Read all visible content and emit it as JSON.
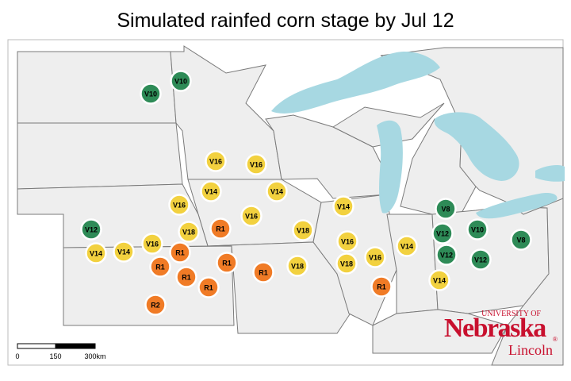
{
  "title": "Simulated rainfed corn stage by Jul 12",
  "colors": {
    "vegetative_early": "#2e8b57",
    "vegetative_late": "#f2d13f",
    "reproductive": "#f07b26",
    "lake": "#a7d8e2",
    "land": "#eeeeee",
    "border": "#7a7a7a",
    "logo_red": "#c8102e"
  },
  "sites": [
    {
      "label": "V10",
      "stage_group": "vegetative_early"
    },
    {
      "label": "V10",
      "stage_group": "vegetative_early"
    },
    {
      "label": "V16",
      "stage_group": "vegetative_late"
    },
    {
      "label": "V16",
      "stage_group": "vegetative_late"
    },
    {
      "label": "V14",
      "stage_group": "vegetative_late"
    },
    {
      "label": "V14",
      "stage_group": "vegetative_late"
    },
    {
      "label": "V16",
      "stage_group": "vegetative_late"
    },
    {
      "label": "V16",
      "stage_group": "vegetative_late"
    },
    {
      "label": "V14",
      "stage_group": "vegetative_late"
    },
    {
      "label": "V12",
      "stage_group": "vegetative_early"
    },
    {
      "label": "V14",
      "stage_group": "vegetative_late"
    },
    {
      "label": "V14",
      "stage_group": "vegetative_late"
    },
    {
      "label": "V16",
      "stage_group": "vegetative_late"
    },
    {
      "label": "V18",
      "stage_group": "vegetative_late"
    },
    {
      "label": "R1",
      "stage_group": "reproductive"
    },
    {
      "label": "V18",
      "stage_group": "vegetative_late"
    },
    {
      "label": "V16",
      "stage_group": "vegetative_late"
    },
    {
      "label": "V18",
      "stage_group": "vegetative_late"
    },
    {
      "label": "V16",
      "stage_group": "vegetative_late"
    },
    {
      "label": "V14",
      "stage_group": "vegetative_late"
    },
    {
      "label": "R1",
      "stage_group": "reproductive"
    },
    {
      "label": "R1",
      "stage_group": "reproductive"
    },
    {
      "label": "R1",
      "stage_group": "reproductive"
    },
    {
      "label": "R1",
      "stage_group": "reproductive"
    },
    {
      "label": "R1",
      "stage_group": "reproductive"
    },
    {
      "label": "R1",
      "stage_group": "reproductive"
    },
    {
      "label": "V18",
      "stage_group": "vegetative_late"
    },
    {
      "label": "R1",
      "stage_group": "reproductive"
    },
    {
      "label": "R2",
      "stage_group": "reproductive"
    },
    {
      "label": "V8",
      "stage_group": "vegetative_early"
    },
    {
      "label": "V12",
      "stage_group": "vegetative_early"
    },
    {
      "label": "V10",
      "stage_group": "vegetative_early"
    },
    {
      "label": "V12",
      "stage_group": "vegetative_early"
    },
    {
      "label": "V12",
      "stage_group": "vegetative_early"
    },
    {
      "label": "V8",
      "stage_group": "vegetative_early"
    },
    {
      "label": "V14",
      "stage_group": "vegetative_late"
    }
  ],
  "scale_bar": {
    "ticks": [
      "0",
      "150",
      "300km"
    ]
  },
  "logo": {
    "line1": "UNIVERSITY OF",
    "line2": "Nebraska",
    "line3": "Lincoln",
    "registered": "®"
  }
}
